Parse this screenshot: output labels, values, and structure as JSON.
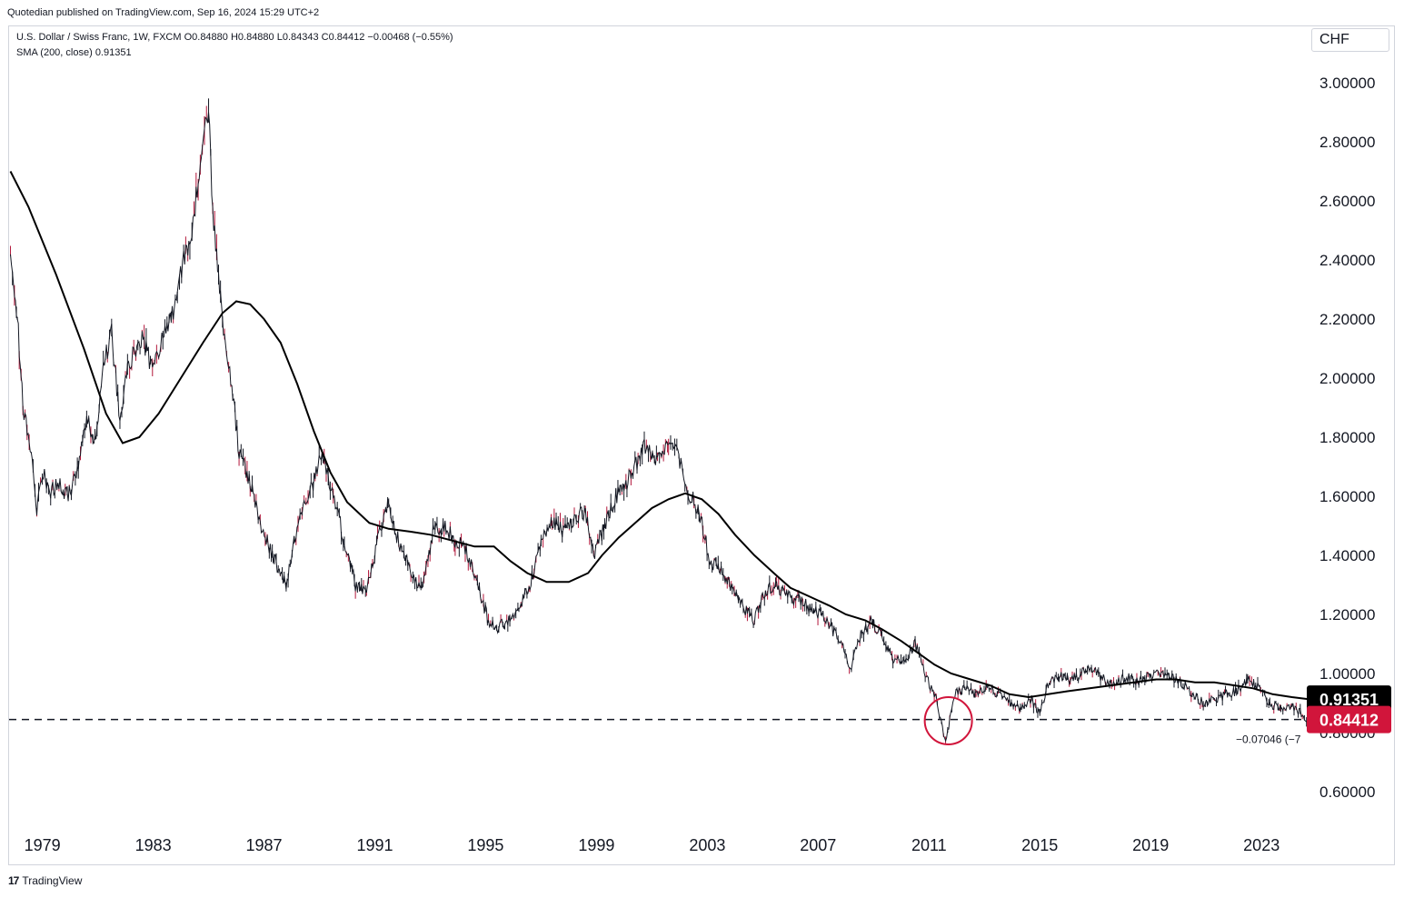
{
  "attribution": "Quotedian published on TradingView.com, Sep 16, 2024 15:29 UTC+2",
  "legend": {
    "symbol_line": "U.S. Dollar / Swiss Franc, 1W, FXCM  O0.84880  H0.84880  L0.84343  C0.84412  −0.00468 (−0.55%)",
    "sma_line": "SMA (200, close)  0.91351"
  },
  "currency": "CHF",
  "footer_brand": "TradingView",
  "footer_logo": "17",
  "price_tags": {
    "sma_value": "0.91351",
    "last_close": "0.84412",
    "sma_color": "#000000",
    "close_color": "#d1153b"
  },
  "hline_label": "−0.07046 (−7",
  "colors": {
    "up": "#131722",
    "down": "#b2163a",
    "circle": "#d1153b",
    "sma": "#000000"
  },
  "chart_data": {
    "type": "line",
    "title": "U.S. Dollar / Swiss Franc, 1W, FXCM",
    "y_ticks": [
      "3.00000",
      "2.80000",
      "2.60000",
      "2.40000",
      "2.20000",
      "2.00000",
      "1.80000",
      "1.60000",
      "1.40000",
      "1.20000",
      "1.00000",
      "0.80000",
      "0.60000"
    ],
    "x_ticks": [
      "1979",
      "1983",
      "1987",
      "1991",
      "1995",
      "1999",
      "2003",
      "2007",
      "2011",
      "2015",
      "2019",
      "2023"
    ],
    "xlim": [
      1977.8,
      2024.7
    ],
    "ylim": [
      0.52,
      3.15
    ],
    "grid": false,
    "horizontal_line": {
      "value": 0.84412,
      "style": "dashed"
    },
    "circle_annotation": {
      "x": 2011.7,
      "y": 0.84
    },
    "series": [
      {
        "name": "U.S. Dollar / Swiss Franc",
        "x": [
          1977.85,
          1978.1,
          1978.3,
          1978.6,
          1978.8,
          1979.0,
          1979.3,
          1979.6,
          1979.9,
          1980.3,
          1980.6,
          1980.9,
          1981.2,
          1981.5,
          1981.8,
          1982.0,
          1982.3,
          1982.6,
          1982.9,
          1983.2,
          1983.5,
          1983.8,
          1984.1,
          1984.4,
          1984.7,
          1985.0,
          1985.15,
          1985.5,
          1985.8,
          1986.1,
          1986.5,
          1986.9,
          1987.3,
          1987.8,
          1988.3,
          1988.7,
          1989.1,
          1989.5,
          1989.9,
          1990.3,
          1990.7,
          1991.1,
          1991.5,
          1991.9,
          1992.3,
          1992.7,
          1993.1,
          1993.5,
          1993.9,
          1994.3,
          1994.7,
          1995.1,
          1995.4,
          1995.8,
          1996.2,
          1996.6,
          1997.0,
          1997.4,
          1997.8,
          1998.2,
          1998.6,
          1998.9,
          1999.3,
          1999.7,
          2000.1,
          2000.5,
          2000.8,
          2001.2,
          2001.6,
          2001.9,
          2002.3,
          2002.7,
          2003.1,
          2003.5,
          2003.9,
          2004.3,
          2004.7,
          2005.1,
          2005.5,
          2005.9,
          2006.3,
          2006.7,
          2007.1,
          2007.5,
          2007.9,
          2008.2,
          2008.5,
          2008.9,
          2009.3,
          2009.7,
          2010.1,
          2010.5,
          2010.9,
          2011.3,
          2011.6,
          2011.9,
          2012.3,
          2012.7,
          2013.1,
          2013.5,
          2013.9,
          2014.3,
          2014.7,
          2015.0,
          2015.3,
          2015.7,
          2016.1,
          2016.5,
          2016.9,
          2017.3,
          2017.7,
          2018.1,
          2018.5,
          2018.9,
          2019.3,
          2019.7,
          2020.1,
          2020.5,
          2020.9,
          2021.3,
          2021.7,
          2022.1,
          2022.5,
          2022.9,
          2023.3,
          2023.7,
          2024.1,
          2024.4,
          2024.7
        ],
        "values": [
          2.42,
          2.2,
          1.9,
          1.75,
          1.55,
          1.68,
          1.62,
          1.65,
          1.6,
          1.68,
          1.88,
          1.78,
          2.05,
          2.15,
          1.85,
          2.0,
          2.08,
          2.15,
          2.05,
          2.1,
          2.18,
          2.25,
          2.4,
          2.5,
          2.75,
          2.9,
          2.55,
          2.2,
          2.0,
          1.75,
          1.65,
          1.5,
          1.4,
          1.3,
          1.55,
          1.62,
          1.75,
          1.6,
          1.45,
          1.3,
          1.28,
          1.45,
          1.58,
          1.43,
          1.35,
          1.28,
          1.48,
          1.5,
          1.45,
          1.42,
          1.3,
          1.18,
          1.15,
          1.18,
          1.22,
          1.3,
          1.45,
          1.52,
          1.48,
          1.52,
          1.55,
          1.4,
          1.5,
          1.6,
          1.65,
          1.72,
          1.78,
          1.72,
          1.8,
          1.75,
          1.62,
          1.55,
          1.38,
          1.35,
          1.28,
          1.22,
          1.18,
          1.28,
          1.3,
          1.26,
          1.25,
          1.22,
          1.2,
          1.15,
          1.08,
          1.02,
          1.12,
          1.18,
          1.12,
          1.05,
          1.04,
          1.1,
          0.99,
          0.9,
          0.76,
          0.93,
          0.95,
          0.93,
          0.96,
          0.93,
          0.9,
          0.88,
          0.91,
          0.86,
          0.97,
          0.99,
          0.98,
          1.0,
          1.02,
          0.98,
          0.96,
          0.99,
          0.97,
          0.99,
          1.0,
          0.99,
          0.97,
          0.93,
          0.9,
          0.91,
          0.93,
          0.94,
          0.98,
          0.95,
          0.9,
          0.88,
          0.89,
          0.87,
          0.844
        ]
      },
      {
        "name": "SMA (200, close)",
        "x": [
          1977.85,
          1978.5,
          1979.5,
          1980.5,
          1981.3,
          1981.9,
          1982.5,
          1983.2,
          1984.0,
          1984.8,
          1985.5,
          1986.0,
          1986.5,
          1987.0,
          1987.6,
          1988.2,
          1988.8,
          1989.4,
          1990.0,
          1990.8,
          1991.5,
          1992.3,
          1993.0,
          1993.8,
          1994.6,
          1995.3,
          1995.9,
          1996.5,
          1997.2,
          1998.0,
          1998.7,
          1999.2,
          1999.8,
          2000.4,
          2001.0,
          2001.6,
          2002.2,
          2002.8,
          2003.4,
          2004.0,
          2004.7,
          2005.4,
          2006.0,
          2006.7,
          2007.4,
          2008.0,
          2008.7,
          2009.3,
          2010.0,
          2010.6,
          2011.2,
          2011.8,
          2012.5,
          2013.2,
          2013.9,
          2014.6,
          2015.3,
          2016.0,
          2016.8,
          2017.6,
          2018.4,
          2019.2,
          2019.9,
          2020.6,
          2021.3,
          2022.0,
          2022.7,
          2023.4,
          2024.1,
          2024.7
        ],
        "values": [
          2.7,
          2.58,
          2.35,
          2.1,
          1.88,
          1.78,
          1.8,
          1.88,
          2.0,
          2.12,
          2.22,
          2.26,
          2.25,
          2.2,
          2.12,
          1.98,
          1.82,
          1.68,
          1.58,
          1.51,
          1.49,
          1.48,
          1.47,
          1.45,
          1.43,
          1.43,
          1.38,
          1.34,
          1.31,
          1.31,
          1.34,
          1.4,
          1.46,
          1.51,
          1.56,
          1.59,
          1.61,
          1.59,
          1.54,
          1.47,
          1.4,
          1.34,
          1.29,
          1.26,
          1.23,
          1.2,
          1.18,
          1.15,
          1.11,
          1.07,
          1.03,
          1.0,
          0.98,
          0.96,
          0.93,
          0.92,
          0.93,
          0.94,
          0.95,
          0.96,
          0.97,
          0.98,
          0.98,
          0.97,
          0.97,
          0.96,
          0.95,
          0.93,
          0.92,
          0.913
        ]
      }
    ]
  }
}
